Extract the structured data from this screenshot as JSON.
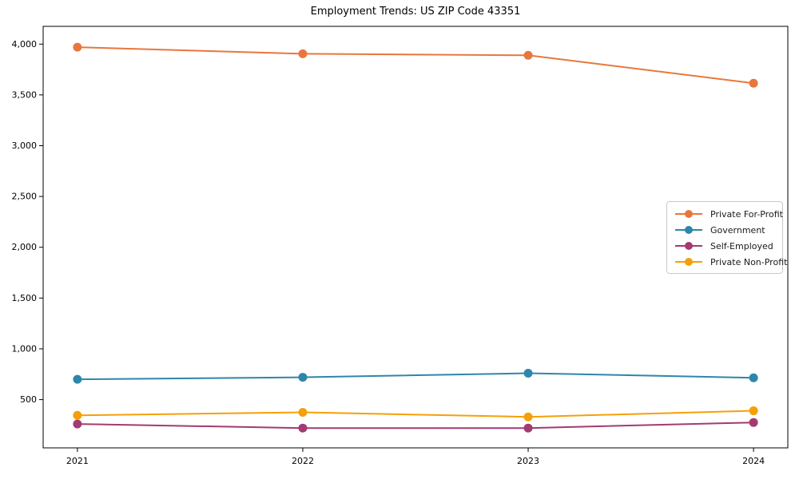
{
  "chart_data": {
    "type": "line",
    "title": "Employment Trends: US ZIP Code 43351",
    "x": [
      2021,
      2022,
      2023,
      2024
    ],
    "x_tick_labels": [
      "2021",
      "2022",
      "2023",
      "2024"
    ],
    "y_ticks": [
      500,
      1000,
      1500,
      2000,
      2500,
      3000,
      3500,
      4000
    ],
    "y_tick_labels": [
      "500",
      "1,000",
      "1,500",
      "2,000",
      "2,500",
      "3,000",
      "3,500",
      "4,000"
    ],
    "ylim": [
      25,
      4175
    ],
    "x_pad_fraction": 0.046,
    "grid": false,
    "legend_position": "right",
    "axis_color": "#000000",
    "tick_label_color": "#000000",
    "series": [
      {
        "name": "Private For-Profit",
        "color": "#e8773d",
        "values": [
          3970,
          3905,
          3890,
          3615
        ]
      },
      {
        "name": "Government",
        "color": "#2e86ab",
        "values": [
          700,
          720,
          760,
          715
        ]
      },
      {
        "name": "Self-Employed",
        "color": "#a23b72",
        "values": [
          260,
          220,
          220,
          275
        ]
      },
      {
        "name": "Private Non-Profit",
        "color": "#f5a008",
        "values": [
          345,
          375,
          330,
          390
        ]
      }
    ]
  }
}
